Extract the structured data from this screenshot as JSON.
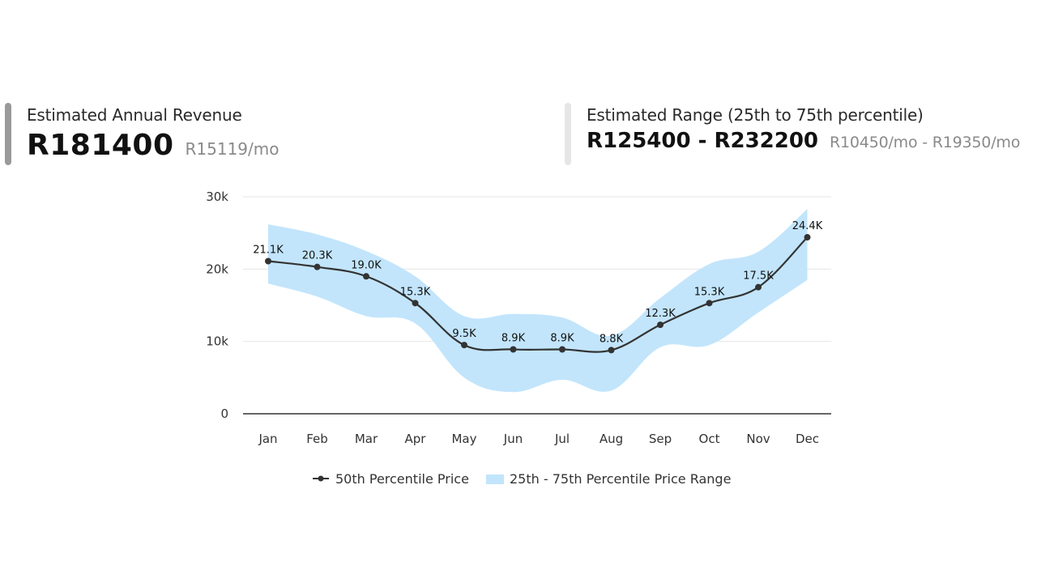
{
  "summary": {
    "annual": {
      "label": "Estimated Annual Revenue",
      "value": "R181400",
      "monthly": "R15119/mo"
    },
    "range": {
      "label": "Estimated Range (25th to 75th percentile)",
      "value": "R125400 - R232200",
      "monthly": "R10450/mo - R19350/mo"
    }
  },
  "chart_data": {
    "type": "line",
    "title": "",
    "xlabel": "",
    "ylabel": "",
    "categories": [
      "Jan",
      "Feb",
      "Mar",
      "Apr",
      "May",
      "Jun",
      "Jul",
      "Aug",
      "Sep",
      "Oct",
      "Nov",
      "Dec"
    ],
    "ylim": [
      0,
      30000
    ],
    "yticks": [
      0,
      10000,
      20000,
      30000
    ],
    "ytick_labels": [
      "0",
      "10k",
      "20k",
      "30k"
    ],
    "grid": true,
    "legend_position": "bottom",
    "series": [
      {
        "name": "50th Percentile Price",
        "type": "line",
        "color": "#333333",
        "values": [
          21100,
          20300,
          19000,
          15300,
          9500,
          8900,
          8900,
          8800,
          12300,
          15300,
          17500,
          24400
        ],
        "labels": [
          "21.1K",
          "20.3K",
          "19.0K",
          "15.3K",
          "9.5K",
          "8.9K",
          "8.9K",
          "8.8K",
          "12.3K",
          "15.3K",
          "17.5K",
          "24.4K"
        ]
      },
      {
        "name": "25th - 75th Percentile Price Range",
        "type": "area-range",
        "color": "#c2e5fc",
        "low": [
          18000,
          16200,
          13500,
          12500,
          5000,
          3000,
          4700,
          3200,
          9200,
          9500,
          14000,
          18500
        ],
        "high": [
          26200,
          24800,
          22500,
          19000,
          13500,
          13800,
          13300,
          10800,
          16000,
          20700,
          22400,
          28300
        ]
      }
    ]
  }
}
